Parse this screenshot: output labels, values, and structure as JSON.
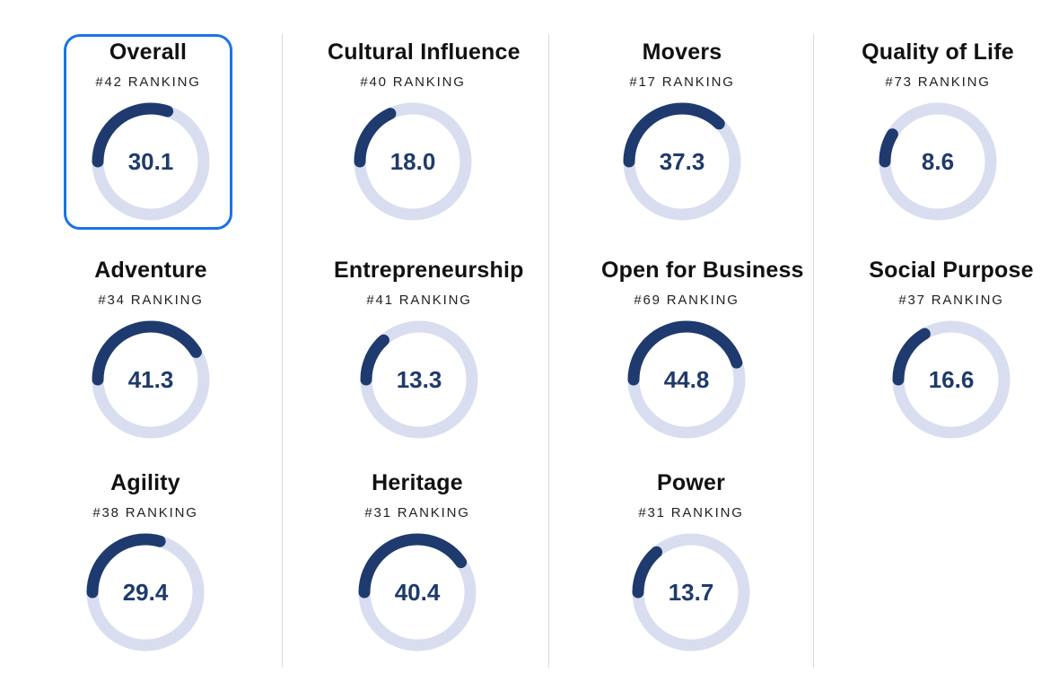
{
  "colors": {
    "arc": "#1e3a6e",
    "track": "#d8def0",
    "selected_border": "#1a73e8"
  },
  "metrics": [
    {
      "name": "Overall",
      "rank": "#42 RANKING",
      "value": "30.1",
      "fraction": 0.301,
      "selected": true
    },
    {
      "name": "Cultural Influence",
      "rank": "#40 RANKING",
      "value": "18.0",
      "fraction": 0.18
    },
    {
      "name": "Movers",
      "rank": "#17 RANKING",
      "value": "37.3",
      "fraction": 0.373
    },
    {
      "name": "Quality of Life",
      "rank": "#73 RANKING",
      "value": "8.6",
      "fraction": 0.086
    },
    {
      "name": "Adventure",
      "rank": "#34 RANKING",
      "value": "41.3",
      "fraction": 0.413
    },
    {
      "name": "Entrepreneurship",
      "rank": "#41 RANKING",
      "value": "13.3",
      "fraction": 0.133
    },
    {
      "name": "Open for Business",
      "rank": "#69 RANKING",
      "value": "44.8",
      "fraction": 0.448
    },
    {
      "name": "Social Purpose",
      "rank": "#37 RANKING",
      "value": "16.6",
      "fraction": 0.166
    },
    {
      "name": "Agility",
      "rank": "#38 RANKING",
      "value": "29.4",
      "fraction": 0.294
    },
    {
      "name": "Heritage",
      "rank": "#31 RANKING",
      "value": "40.4",
      "fraction": 0.404
    },
    {
      "name": "Power",
      "rank": "#31 RANKING",
      "value": "13.7",
      "fraction": 0.137
    }
  ]
}
